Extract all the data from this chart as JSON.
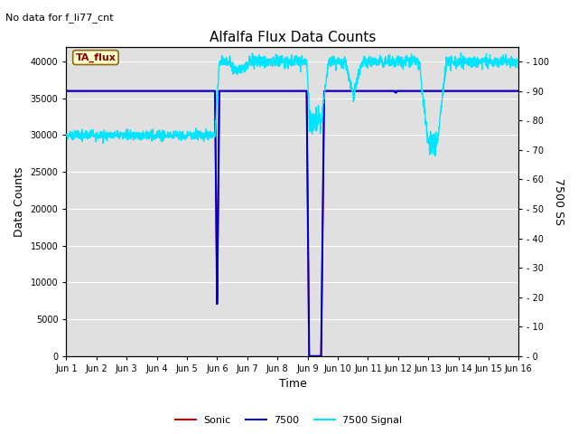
{
  "title": "Alfalfa Flux Data Counts",
  "subtitle": "No data for f_li77_cnt",
  "xlabel": "Time",
  "ylabel_left": "Data Counts",
  "ylabel_right": "7500 SS",
  "ylim_left": [
    0,
    42000
  ],
  "ylim_right": [
    0,
    105
  ],
  "yticks_left": [
    0,
    5000,
    10000,
    15000,
    20000,
    25000,
    30000,
    35000,
    40000
  ],
  "yticks_right": [
    0,
    10,
    20,
    30,
    40,
    50,
    60,
    70,
    80,
    90,
    100
  ],
  "xtick_labels": [
    "Jun 1",
    "Jun 2",
    "Jun 3",
    "Jun 4",
    "Jun 5",
    "Jun 6",
    "Jun 7",
    "Jun 8",
    "Jun 9",
    "Jun 10",
    "Jun 11",
    "Jun 12",
    "Jun 13",
    "Jun 14",
    "Jun 15",
    "Jun 16"
  ],
  "bg_color": "#e0e0e0",
  "line_7500_color": "#0000cc",
  "line_sonic_color": "#cc0000",
  "line_signal_color": "#00e5ff",
  "annotation_label": "TA_flux",
  "figsize": [
    6.4,
    4.8
  ],
  "dpi": 100
}
